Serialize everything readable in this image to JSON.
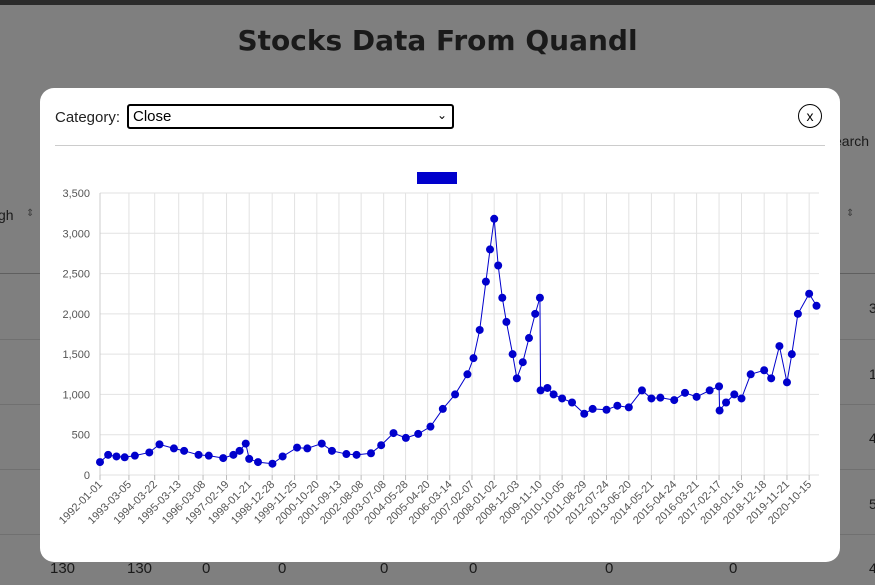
{
  "background": {
    "title": "Stocks Data From Quandl",
    "left_header_fragment": "gh",
    "search_fragment": "earch",
    "right_row_values": [
      "3",
      "1",
      "4",
      "5",
      "4"
    ],
    "bottom_row": [
      "130",
      "130",
      "0",
      "0",
      "0",
      "0",
      "0",
      "0"
    ]
  },
  "modal": {
    "category_label": "Category:",
    "category_value": "Close",
    "close_label": "x"
  },
  "chart_data": {
    "type": "line",
    "title": "",
    "legend": {
      "placement": "top-center",
      "color": "#0000cc",
      "label": ""
    },
    "series_color": "#0000cc",
    "ylim": [
      0,
      3500
    ],
    "yticks": [
      0,
      500,
      1000,
      1500,
      2000,
      2500,
      3000,
      3500
    ],
    "ytick_labels": [
      "0",
      "500",
      "1,000",
      "1,500",
      "2,000",
      "2,500",
      "3,000",
      "3,500"
    ],
    "xtick_labels": [
      "1992-01-01",
      "1993-03-05",
      "1994-03-22",
      "1995-03-13",
      "1996-03-08",
      "1997-02-19",
      "1998-01-21",
      "1998-12-28",
      "1999-11-25",
      "2000-10-20",
      "2001-09-13",
      "2002-08-08",
      "2003-07-08",
      "2004-05-28",
      "2005-04-20",
      "2006-03-14",
      "2007-02-07",
      "2008-01-02",
      "2008-12-03",
      "2009-11-10",
      "2010-10-05",
      "2011-08-29",
      "2012-07-24",
      "2013-06-20",
      "2014-05-21",
      "2015-04-24",
      "2016-03-21",
      "2017-02-17",
      "2018-01-16",
      "2018-12-18",
      "2019-11-21",
      "2020-10-15"
    ],
    "x": [
      "1992-01-01",
      "1992-05-01",
      "1992-09-01",
      "1993-01-01",
      "1993-06-01",
      "1994-01-01",
      "1994-06-01",
      "1995-01-01",
      "1995-06-01",
      "1996-01-01",
      "1996-06-01",
      "1997-01-01",
      "1997-06-01",
      "1997-09-01",
      "1997-12-01",
      "1998-01-21",
      "1998-06-01",
      "1999-01-01",
      "1999-06-01",
      "2000-01-01",
      "2000-06-01",
      "2001-01-01",
      "2001-06-01",
      "2002-01-01",
      "2002-06-01",
      "2003-01-01",
      "2003-06-01",
      "2003-12-01",
      "2004-06-01",
      "2004-12-01",
      "2005-06-01",
      "2005-12-01",
      "2006-06-01",
      "2006-12-01",
      "2007-03-01",
      "2007-06-01",
      "2007-09-01",
      "2007-11-01",
      "2008-01-02",
      "2008-03-01",
      "2008-05-01",
      "2008-07-01",
      "2008-10-01",
      "2008-12-03",
      "2009-03-01",
      "2009-06-01",
      "2009-09-01",
      "2009-11-10",
      "2009-11-20",
      "2010-03-01",
      "2010-06-01",
      "2010-10-05",
      "2011-03-01",
      "2011-08-29",
      "2012-01-01",
      "2012-07-24",
      "2013-01-01",
      "2013-06-20",
      "2014-01-01",
      "2014-05-21",
      "2014-10-01",
      "2015-04-24",
      "2015-10-01",
      "2016-03-21",
      "2016-10-01",
      "2017-02-17",
      "2017-02-25",
      "2017-06-01",
      "2017-10-01",
      "2018-01-16",
      "2018-06-01",
      "2018-12-18",
      "2019-04-01",
      "2019-08-01",
      "2019-11-21",
      "2020-02-01",
      "2020-05-01",
      "2020-10-15",
      "2021-02-01"
    ],
    "values": [
      160,
      250,
      230,
      220,
      240,
      280,
      380,
      330,
      300,
      250,
      240,
      210,
      250,
      300,
      390,
      200,
      160,
      140,
      230,
      340,
      330,
      390,
      300,
      260,
      250,
      270,
      370,
      520,
      460,
      510,
      600,
      820,
      1000,
      1250,
      1450,
      1800,
      2400,
      2800,
      3180,
      2600,
      2200,
      1900,
      1500,
      1200,
      1400,
      1700,
      2000,
      2200,
      1050,
      1080,
      1000,
      950,
      900,
      760,
      820,
      810,
      860,
      840,
      1050,
      950,
      960,
      930,
      1020,
      970,
      1050,
      1100,
      800,
      900,
      1000,
      950,
      1250,
      1300,
      1200,
      1600,
      1150,
      1500,
      2000,
      2250,
      2100
    ]
  }
}
